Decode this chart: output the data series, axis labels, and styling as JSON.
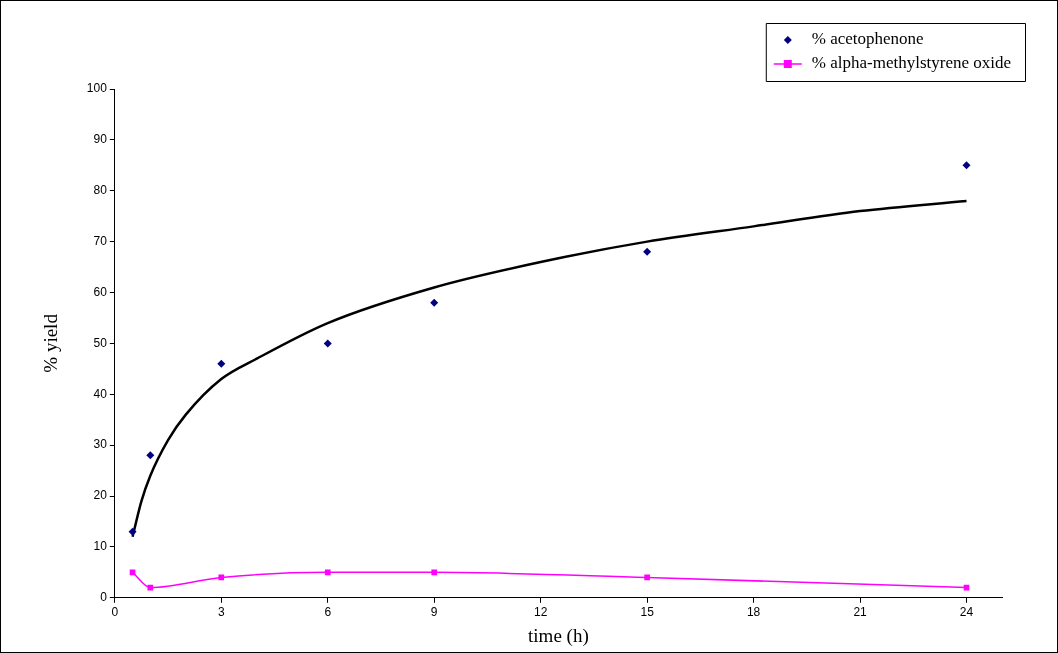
{
  "chart_data": {
    "type": "scatter",
    "xlabel": "time (h)",
    "ylabel": "% yield",
    "xlim": [
      0,
      25
    ],
    "xticks": [
      0,
      3,
      6,
      9,
      12,
      15,
      18,
      21,
      24
    ],
    "ylim": [
      0,
      100
    ],
    "yticks": [
      0,
      10,
      20,
      30,
      40,
      50,
      60,
      70,
      80,
      90,
      100
    ],
    "grid": false,
    "legend": "top right",
    "series": [
      {
        "name": "% acetophenone",
        "marker": "diamond",
        "color": "#000080",
        "x": [
          0.5,
          1,
          3,
          6,
          9,
          15,
          24
        ],
        "values": [
          13,
          28,
          46,
          50,
          58,
          68,
          85
        ]
      },
      {
        "name": "% alpha-methylstyrene oxide",
        "type": "line",
        "marker": "square",
        "color": "#ff00ff",
        "x": [
          0.5,
          1,
          3,
          6,
          9,
          15,
          24
        ],
        "values": [
          5,
          2,
          4,
          5,
          5,
          4,
          2
        ]
      },
      {
        "type": "line",
        "marker": "none",
        "color": "#000000",
        "x": [
          0.5,
          0.75,
          1,
          1.5,
          2,
          3,
          4,
          6,
          9,
          12,
          15,
          18,
          21,
          24
        ],
        "values": [
          12,
          19,
          24,
          31,
          36,
          43,
          47,
          54,
          61,
          66,
          70,
          73,
          76,
          78
        ]
      }
    ]
  }
}
